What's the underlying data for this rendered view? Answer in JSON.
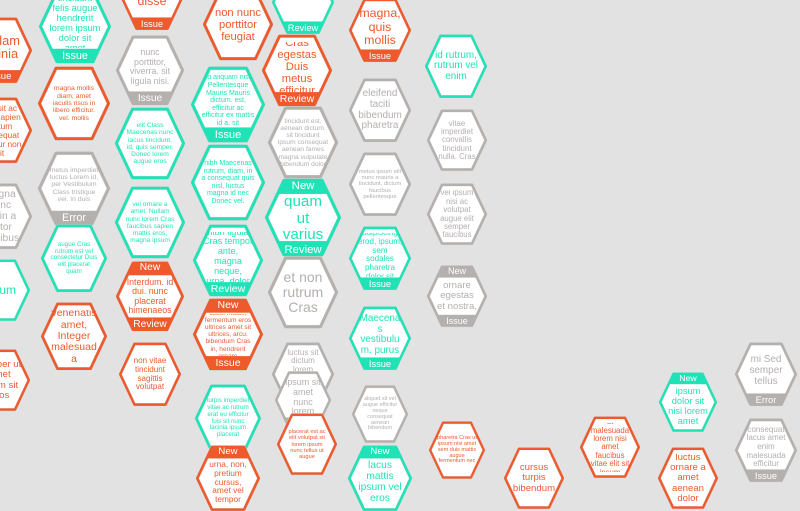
{
  "colors": {
    "orange": "#ee5a2c",
    "teal": "#1fe3b6",
    "gray": "#b4b0ae",
    "background": "#e2e2e2"
  },
  "tiles": [
    {
      "color": "orange",
      "text": "suspendisse",
      "bottom": "Issue"
    },
    {
      "color": "teal",
      "text": "tincidunt felis augue hendrerit lorem ipsum dolor sit amet",
      "bottom": "Issue"
    },
    {
      "color": "teal",
      "text": "",
      "bottom": "Review"
    },
    {
      "color": "orange",
      "text": "non nunc porttitor feugiat"
    },
    {
      "color": "orange",
      "text": "magna, quis mollis",
      "bottom": "Issue"
    },
    {
      "color": "teal",
      "text": "id rutrum, rutrum vel enim"
    },
    {
      "color": "orange",
      "text": "Cras egestas Duis metus efficitur",
      "bottom": "Review"
    },
    {
      "color": "gray",
      "text": "nunc porttitor, viverra. sit ligula nisi.",
      "bottom": "Issue"
    },
    {
      "color": "orange",
      "text": "Nullam lacinia",
      "bottom": "Issue"
    },
    {
      "color": "orange",
      "text": "magna mollis diam, amet iaculis risus in libero efficitur. vel. mollis"
    },
    {
      "color": "teal",
      "text": "id aliquam nisl Pellentesque Mauris Mauris dictum. est, efficitur ac efficitur ex mattis id a. sit",
      "bottom": "Issue"
    },
    {
      "color": "gray",
      "text": "eleifend taciti bibendum pharetra"
    },
    {
      "color": "gray",
      "text": "tincidunt est. aenean dictum. sit tincidunt ipsum consequat aenean fames magna vulputate bibendum dolor"
    },
    {
      "color": "gray",
      "text": "vitae imperdiet convallis tincidunt nulla. Cras"
    },
    {
      "color": "orange",
      "text": "nisl sit ac felis sapien dictum consequat efficitur non sit"
    },
    {
      "color": "teal",
      "text": "elit Class Maecenas nunc lacus tincidunt, id, quis semper. Donec lorem augue eros"
    },
    {
      "color": "teal",
      "text": "nibh Maecenas rutrum, diam, in a consequat quis nisl, luctus magna id nec Donec vel."
    },
    {
      "color": "gray",
      "text": "metus imperdiet luctus Lorem id, per Vestibulum Class tristique vel. In duis",
      "bottom": "Error"
    },
    {
      "color": "gray",
      "text": "metus ipsum elit nunc mauris a tincidunt, dictum faucibus pellentesque"
    },
    {
      "color": "gray",
      "text": "vel ipsum nisi ac volutpat augue elit semper faucibus"
    },
    {
      "color": "gray",
      "text": "magna nunc Proin a tortor faucibus"
    },
    {
      "color": "teal",
      "text": "quam ut varius",
      "top": "New",
      "bottom": "Review"
    },
    {
      "color": "teal",
      "text": "vel ornare a amet. Nullam nunc lorem Cras faucibus sapien mattis eros, magna ipsum"
    },
    {
      "color": "teal",
      "text": "augue Cras rutrum est vel consectetur Duis elit placerat quam"
    },
    {
      "color": "teal",
      "text": "nibh ligula Cras tempor ante, magna neque, urna, dolor",
      "bottom": "Review"
    },
    {
      "color": "teal",
      "text": "adipiscing erod, ipsum, sem sodales pharetra dolor sit",
      "bottom": "Issue"
    },
    {
      "color": "gray",
      "text": "ornare egestas et nostra,",
      "top": "New",
      "bottom": "Issue"
    },
    {
      "color": "gray",
      "text": "et non rutrum Cras"
    },
    {
      "color": "orange",
      "text": "Interdum. id dui. nunc placerat himenaeos",
      "top": "New",
      "bottom": "Review"
    },
    {
      "color": "orange",
      "text": "venenatis amet, Integer malesuada"
    },
    {
      "color": "teal",
      "text": "ipsum"
    },
    {
      "color": "orange",
      "text": "lacus mattis, fermentum eros ultrices amet sit ultrices, arcu. bibendum Cras in, hendrerit ornare",
      "top": "New",
      "bottom": "Issue"
    },
    {
      "color": "teal",
      "text": "Maecenas vestibulu m. purus",
      "bottom": "Issue"
    },
    {
      "color": "gray",
      "text": "luctus sit dictum lorem molestie sapien nunc eros leo nisi"
    },
    {
      "color": "orange",
      "text": "non vitae tincidunt sagittis volutpat"
    },
    {
      "color": "gray",
      "text": "ipsum sit amet nunc lorem",
      "bottom": "Review"
    },
    {
      "color": "gray",
      "text": "aliquet sit vel augue efficitur neque consequat aenean bibendum"
    },
    {
      "color": "teal",
      "text": "turpis imperdiet vitae ac rutrum erat eu efficitur fuis sit nunc lacinia ipsum placerat"
    },
    {
      "color": "gray",
      "text": "mi Sed semper tellus",
      "bottom": "Error"
    },
    {
      "color": "teal",
      "text": "ipsum dolor sit nisi lorem amet",
      "top": "New"
    },
    {
      "color": "gray",
      "text": "consequat lacus amet enim malesuada efficitur",
      "bottom": "Issue"
    },
    {
      "color": "orange",
      "text": "placerat est ac elit volutpat sit lorem ipsum nunc tellus ut augue"
    },
    {
      "color": "orange",
      "text": "pharetra Cras ut ipsum nisi amet sem duis mattis augue fermentum nec"
    },
    {
      "color": "orange",
      "text": "ut malesuada lorem nisi amet faucibus vitae elit sit ipsum"
    },
    {
      "color": "orange",
      "text": "urna, non, pretium cursus, amet vel tempor",
      "top": "New"
    },
    {
      "color": "teal",
      "text": "lacus mattis ipsum vel eros",
      "top": "New"
    },
    {
      "color": "orange",
      "text": "cursus turpis bibendum"
    },
    {
      "color": "orange",
      "text": "luctus ornare a amet aenean dolor"
    },
    {
      "color": "orange",
      "text": "semper ut amet lorem sit eros"
    }
  ]
}
